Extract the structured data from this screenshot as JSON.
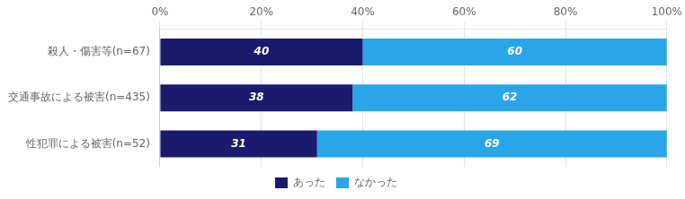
{
  "chart_data": {
    "type": "bar",
    "orientation": "horizontal",
    "stacked": true,
    "categories": [
      "殺人・傷害等(n=67)",
      "交通事故による被害(n=435)",
      "性犯罪による被害(n=52)"
    ],
    "series": [
      {
        "name": "あった",
        "color": "#1a1a6e",
        "values": [
          40,
          38,
          31
        ]
      },
      {
        "name": "なかった",
        "color": "#29a6e8",
        "values": [
          60,
          62,
          69
        ]
      }
    ],
    "xlim": [
      0,
      100
    ],
    "xticks": [
      {
        "value": 0,
        "label": "0%"
      },
      {
        "value": 20,
        "label": "20%"
      },
      {
        "value": 40,
        "label": "40%"
      },
      {
        "value": 60,
        "label": "60%"
      },
      {
        "value": 80,
        "label": "80%"
      },
      {
        "value": 100,
        "label": "100%"
      }
    ],
    "grid": true,
    "legend": "bottom",
    "data_labels": true
  }
}
